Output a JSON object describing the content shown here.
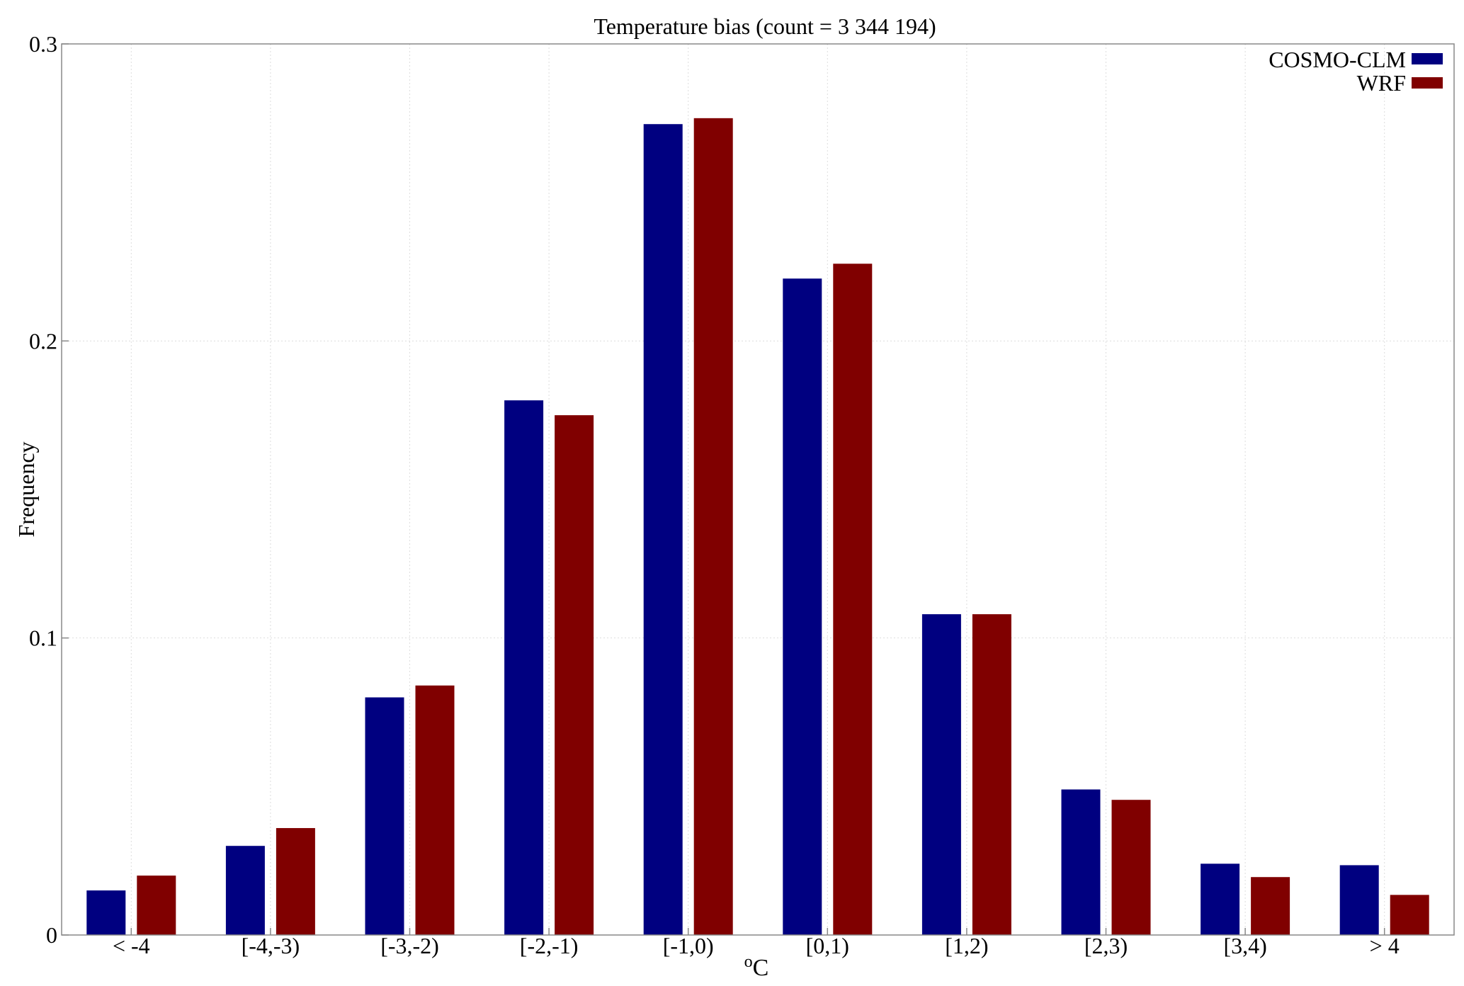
{
  "chart_data": {
    "type": "bar",
    "title": "Temperature bias (count = 3 344 194)",
    "xlabel_base": "C",
    "xlabel_sup": "o",
    "ylabel": "Frequency",
    "ylim": [
      0,
      0.3
    ],
    "yticks": [
      "0",
      "0.1",
      "0.2",
      "0.3"
    ],
    "grid": true,
    "legend_position": "top-right",
    "categories": [
      "< -4",
      "[-4,-3)",
      "[-3,-2)",
      "[-2,-1)",
      "[-1,0)",
      "[0,1)",
      "[1,2)",
      "[2,3)",
      "[3,4)",
      "> 4"
    ],
    "series": [
      {
        "name": "COSMO-CLM",
        "color": "#000080",
        "values": [
          0.015,
          0.03,
          0.08,
          0.18,
          0.273,
          0.221,
          0.108,
          0.049,
          0.024,
          0.0235
        ]
      },
      {
        "name": "WRF",
        "color": "#800000",
        "values": [
          0.02,
          0.036,
          0.084,
          0.175,
          0.275,
          0.226,
          0.108,
          0.0455,
          0.0195,
          0.0135
        ]
      }
    ]
  }
}
